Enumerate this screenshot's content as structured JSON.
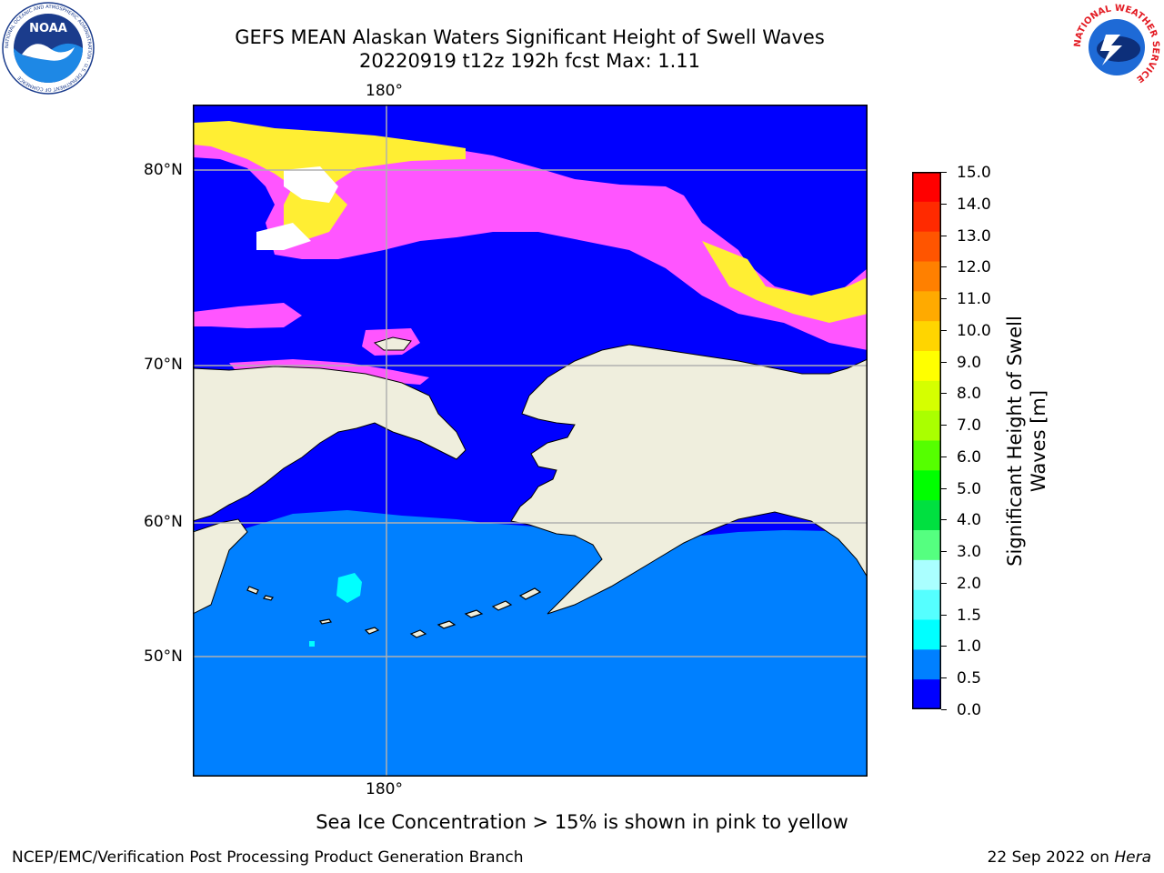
{
  "header": {
    "title_line1": "GEFS MEAN Alaskan Waters Significant Height of Swell Waves",
    "title_line2": "20220919 t12z 192h fcst   Max: 1.11"
  },
  "logos": {
    "left": "NOAA",
    "left_ring_text": "NATIONAL OCEANIC AND ATMOSPHERIC ADMINISTRATION · U.S. DEPARTMENT OF COMMERCE",
    "right_ring_text": "NATIONAL WEATHER SERVICE"
  },
  "map": {
    "lon_label_top": "180°",
    "lon_label_bottom": "180°",
    "lat_labels": [
      "80°N",
      "70°N",
      "60°N",
      "50°N"
    ],
    "colors": {
      "land": "#efeedd",
      "ocean_low": "#0000ff",
      "ocean_mid": "#0080ff",
      "ocean_high": "#00ffff",
      "ice_pink": "#ff55ff",
      "ice_yellow": "#ffee33",
      "grid": "#b0b0b0",
      "coast": "#000000"
    }
  },
  "colorbar": {
    "ticks": [
      "15.0",
      "14.0",
      "13.0",
      "12.0",
      "11.0",
      "10.0",
      "9.0",
      "8.0",
      "7.0",
      "6.0",
      "5.0",
      "4.0",
      "3.0",
      "2.0",
      "1.5",
      "1.0",
      "0.5",
      "0.0"
    ],
    "colors": [
      "#ff0000",
      "#ff2a00",
      "#ff5500",
      "#ff8000",
      "#ffaa00",
      "#ffd500",
      "#ffff00",
      "#d5ff00",
      "#aaff00",
      "#55ff00",
      "#00ff00",
      "#00e040",
      "#55ff80",
      "#aaffff",
      "#55ffff",
      "#00ffff",
      "#0080ff",
      "#0000ff"
    ],
    "label_line1": "Significant Height of Swell",
    "label_line2": "Waves [m]"
  },
  "note": "Sea Ice Concentration > 15% is shown in pink to yellow",
  "footer": {
    "left": "NCEP/EMC/Verification Post Processing Product Generation Branch",
    "right_prefix": "22 Sep 2022 on ",
    "right_host": "Hera"
  }
}
